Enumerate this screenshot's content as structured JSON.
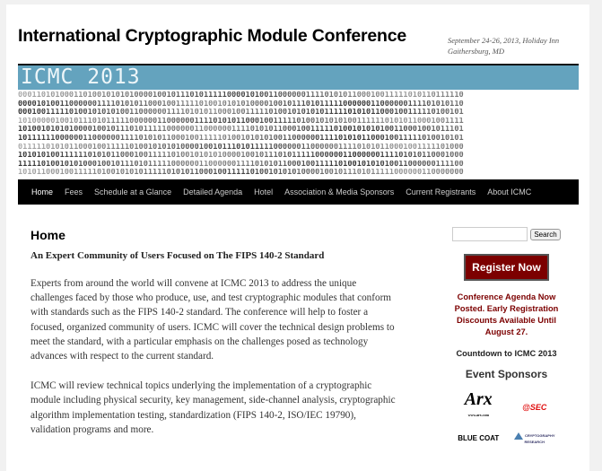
{
  "header": {
    "title": "International Cryptographic Module Conference",
    "tagline_line1": "September 24-26, 2013, Holiday Inn",
    "tagline_line2": "Gaithersburg, MD"
  },
  "banner": {
    "title": "ICMC 2013",
    "binary_lines": [
      "000110101000110100101010100001001011101011111000010100110000001111010101100010011111010110111110",
      "000010100110000001111010101100010011111010010101010000100101110101111100000011000000111101010110",
      "000100111110100101010100110000001111010101100010011111010010101010111110101011000100111110100101",
      "101000001001011101011111000000110000001111010101100010011111010010101010011111101010110001001111",
      "101001010101000010010111010111110000001100000011110101011000100111110100101010100110001001011101",
      "101111110000001100000011110101011000100111110100101010100110000001111010101100010011111010010101",
      "011111010101100010011111010010101010000100101110101111100000011000000111101010110001001111101000",
      "101010100111111010101100010011111010010101010000100101110101111100000011000000111101010110001000",
      "111110100101010001001011101011111000000110000001111010101100010011111010010101010011000000111100",
      "101011000100111110100101010111110101011000100111110100101010100001001011101011111000000110000000"
    ]
  },
  "nav": {
    "items": [
      "Home",
      "Fees",
      "Schedule at a Glance",
      "Detailed Agenda",
      "Hotel",
      "Association & Media Sponsors",
      "Current Registrants",
      "About ICMC"
    ]
  },
  "main": {
    "heading": "Home",
    "subheading": "An Expert Community of Users Focused on The FIPS 140-2 Standard",
    "paragraph1": [
      "Experts from around the world will convene at ICMC 2013 to address the unique",
      "challenges faced by those who produce, use, and test cryptographic modules that conform",
      "with standards such as the FIPS 140-2 standard. The conference  will help to foster a",
      "focused, organized community of users. ICMC will cover the technical design problems to",
      "meet the standard, with a particular emphasis on the challenges posed as technology",
      "advances with respect to the current standard."
    ],
    "paragraph2": [
      "ICMC will review technical topics underlying the implementation of a cryptographic",
      "module including physical security, key management, side-channel analysis, cryptographic",
      "algorithm implementation testing, standardization (FIPS 140-2, ISO/IEC 19790),",
      "validation programs and more."
    ]
  },
  "sidebar": {
    "search_value": "",
    "search_button": "Search",
    "register_button": "Register Now",
    "notice": "Conference Agenda Now Posted. Early Registration Discounts Available Until August 27.",
    "countdown": "Countdown to ICMC 2013",
    "sponsors_heading": "Event Sponsors",
    "sponsors": [
      {
        "name": "Arx",
        "sub": "www.arx.com"
      },
      {
        "name": "@SEC"
      },
      {
        "name": "BLUE COAT"
      },
      {
        "name": "CRYPTOGRAPHY RESEARCH"
      }
    ]
  },
  "colors": {
    "banner": "#64a3be",
    "nav": "#000000",
    "register": "#7c0000",
    "notice": "#7c0000"
  }
}
